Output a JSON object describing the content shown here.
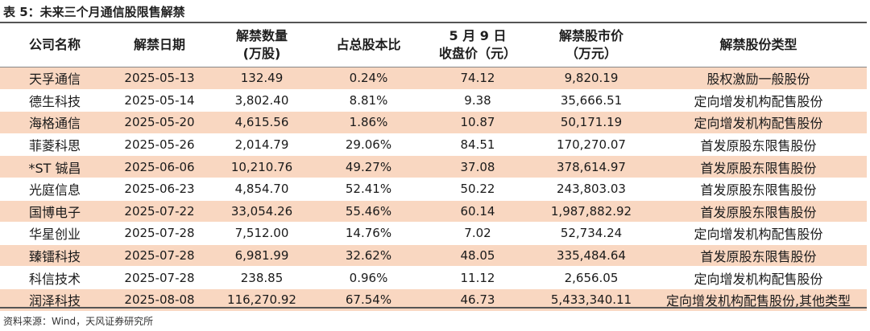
{
  "title": "表 5：未来三个月通信股限售解禁",
  "headers": {
    "company": "公司名称",
    "date": "解禁日期",
    "qty_line1": "解禁数量",
    "qty_line2": "(万股)",
    "ratio": "占总股本比",
    "price_line1": "5 月 9 日",
    "price_line2": "收盘价（元）",
    "mktval_line1": "解禁股市价",
    "mktval_line2": "（万元）",
    "type": "解禁股份类型"
  },
  "rows": [
    {
      "company": "天孚通信",
      "date": "2025-05-13",
      "qty": "132.49",
      "ratio": "0.24%",
      "price": "74.12",
      "mktval": "9,820.19",
      "type": "股权激励一般股份"
    },
    {
      "company": "德生科技",
      "date": "2025-05-14",
      "qty": "3,802.40",
      "ratio": "8.81%",
      "price": "9.38",
      "mktval": "35,666.51",
      "type": "定向增发机构配售股份"
    },
    {
      "company": "海格通信",
      "date": "2025-05-20",
      "qty": "4,615.56",
      "ratio": "1.86%",
      "price": "10.87",
      "mktval": "50,171.19",
      "type": "定向增发机构配售股份"
    },
    {
      "company": "菲菱科思",
      "date": "2025-05-26",
      "qty": "2,014.79",
      "ratio": "29.06%",
      "price": "84.51",
      "mktval": "170,270.07",
      "type": "首发原股东限售股份"
    },
    {
      "company": "*ST 铖昌",
      "date": "2025-06-06",
      "qty": "10,210.76",
      "ratio": "49.27%",
      "price": "37.08",
      "mktval": "378,614.97",
      "type": "首发原股东限售股份"
    },
    {
      "company": "光庭信息",
      "date": "2025-06-23",
      "qty": "4,854.70",
      "ratio": "52.41%",
      "price": "50.22",
      "mktval": "243,803.03",
      "type": "首发原股东限售股份"
    },
    {
      "company": "国博电子",
      "date": "2025-07-22",
      "qty": "33,054.26",
      "ratio": "55.46%",
      "price": "60.14",
      "mktval": "1,987,882.92",
      "type": "首发原股东限售股份"
    },
    {
      "company": "华星创业",
      "date": "2025-07-28",
      "qty": "7,512.00",
      "ratio": "14.76%",
      "price": "7.02",
      "mktval": "52,734.24",
      "type": "定向增发机构配售股份"
    },
    {
      "company": "臻镭科技",
      "date": "2025-07-28",
      "qty": "6,981.99",
      "ratio": "32.62%",
      "price": "48.05",
      "mktval": "335,484.64",
      "type": "首发原股东限售股份"
    },
    {
      "company": "科信技术",
      "date": "2025-07-28",
      "qty": "238.85",
      "ratio": "0.96%",
      "price": "11.12",
      "mktval": "2,656.05",
      "type": "定向增发机构配售股份"
    },
    {
      "company": "润泽科技",
      "date": "2025-08-08",
      "qty": "116,270.92",
      "ratio": "67.54%",
      "price": "46.73",
      "mktval": "5,433,340.11",
      "type": "定向增发机构配售股份,其他类型"
    }
  ],
  "row_shade_color": "#f9d7c1",
  "source": "资料来源：Wind，天风证券研究所"
}
